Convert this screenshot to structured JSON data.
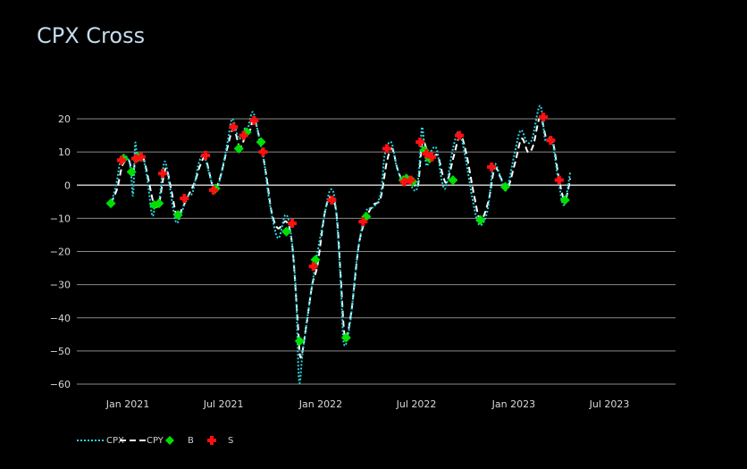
{
  "chart_data": {
    "type": "line",
    "title": "CPX Cross",
    "xlabel": "",
    "ylabel": "",
    "ylim": [
      -61,
      24
    ],
    "xlim": [
      "2020-10-01",
      "2023-11-15"
    ],
    "y_ticks": [
      20,
      10,
      0,
      -10,
      -20,
      -30,
      -40,
      -50,
      -60
    ],
    "x_ticks": [
      {
        "date": "2021-01-01",
        "label": "Jan 2021"
      },
      {
        "date": "2021-07-01",
        "label": "Jul 2021"
      },
      {
        "date": "2022-01-01",
        "label": "Jan 2022"
      },
      {
        "date": "2022-07-01",
        "label": "Jul 2022"
      },
      {
        "date": "2023-01-01",
        "label": "Jan 2023"
      },
      {
        "date": "2023-07-01",
        "label": "Jul 2023"
      }
    ],
    "grid": true,
    "legend_position": "bottom-left",
    "colors": {
      "background": "#000000",
      "grid": "#8a8a8a",
      "zero_line": "#c8c8c8",
      "cpx": "#29d6e0",
      "cpy": "#ffffff",
      "buy": "#00e000",
      "sell": "#ff1010",
      "tick_text": "#d8d8d8",
      "title": "#c5dcec"
    },
    "series": [
      {
        "name": "CPX",
        "style": "dotted",
        "points": [
          [
            "2020-11-30",
            -5.5
          ],
          [
            "2020-12-10",
            0
          ],
          [
            "2020-12-20",
            8.5
          ],
          [
            "2021-01-01",
            8
          ],
          [
            "2021-01-07",
            4
          ],
          [
            "2021-01-11",
            -3
          ],
          [
            "2021-01-15",
            12.5
          ],
          [
            "2021-01-19",
            8
          ],
          [
            "2021-01-27",
            9.5
          ],
          [
            "2021-02-06",
            3
          ],
          [
            "2021-02-16",
            -9
          ],
          [
            "2021-02-22",
            -6
          ],
          [
            "2021-03-01",
            -5
          ],
          [
            "2021-03-08",
            4
          ],
          [
            "2021-03-13",
            7
          ],
          [
            "2021-03-21",
            0
          ],
          [
            "2021-04-02",
            -11
          ],
          [
            "2021-04-12",
            -8.5
          ],
          [
            "2021-04-24",
            -3.5
          ],
          [
            "2021-05-04",
            -2
          ],
          [
            "2021-05-16",
            7
          ],
          [
            "2021-05-26",
            8.5
          ],
          [
            "2021-06-08",
            1
          ],
          [
            "2021-06-14",
            -1.5
          ],
          [
            "2021-06-24",
            1.5
          ],
          [
            "2021-07-04",
            9
          ],
          [
            "2021-07-10",
            14
          ],
          [
            "2021-07-18",
            20
          ],
          [
            "2021-07-30",
            14
          ],
          [
            "2021-08-10",
            17
          ],
          [
            "2021-08-16",
            17
          ],
          [
            "2021-08-26",
            22
          ],
          [
            "2021-09-08",
            13
          ],
          [
            "2021-09-16",
            7
          ],
          [
            "2021-09-26",
            -5
          ],
          [
            "2021-10-12",
            -16
          ],
          [
            "2021-10-26",
            -9
          ],
          [
            "2021-11-05",
            -14
          ],
          [
            "2021-11-15",
            -32
          ],
          [
            "2021-11-21",
            -59
          ],
          [
            "2021-11-28",
            -50
          ],
          [
            "2021-12-12",
            -34
          ],
          [
            "2021-12-24",
            -22
          ],
          [
            "2022-01-07",
            -10
          ],
          [
            "2022-01-19",
            -1.5
          ],
          [
            "2022-01-29",
            -6
          ],
          [
            "2022-02-08",
            -30
          ],
          [
            "2022-02-14",
            -48
          ],
          [
            "2022-02-26",
            -41
          ],
          [
            "2022-03-12",
            -20
          ],
          [
            "2022-03-28",
            -8
          ],
          [
            "2022-04-08",
            -7
          ],
          [
            "2022-04-24",
            -3
          ],
          [
            "2022-05-02",
            9
          ],
          [
            "2022-05-14",
            13
          ],
          [
            "2022-05-24",
            6
          ],
          [
            "2022-06-04",
            1.5
          ],
          [
            "2022-06-14",
            3
          ],
          [
            "2022-06-22",
            -0.5
          ],
          [
            "2022-07-02",
            -1
          ],
          [
            "2022-07-08",
            9
          ],
          [
            "2022-07-12",
            17.5
          ],
          [
            "2022-07-20",
            6
          ],
          [
            "2022-07-28",
            10
          ],
          [
            "2022-08-08",
            11
          ],
          [
            "2022-08-18",
            1.5
          ],
          [
            "2022-08-26",
            -0.5
          ],
          [
            "2022-09-08",
            11
          ],
          [
            "2022-09-20",
            16
          ],
          [
            "2022-10-02",
            8
          ],
          [
            "2022-10-16",
            -5
          ],
          [
            "2022-10-28",
            -12
          ],
          [
            "2022-11-12",
            -8
          ],
          [
            "2022-11-24",
            6
          ],
          [
            "2022-12-06",
            3
          ],
          [
            "2022-12-18",
            -1.5
          ],
          [
            "2023-01-02",
            9
          ],
          [
            "2023-01-14",
            16.5
          ],
          [
            "2023-01-26",
            13
          ],
          [
            "2023-02-05",
            14
          ],
          [
            "2023-02-20",
            24
          ],
          [
            "2023-03-02",
            13.5
          ],
          [
            "2023-03-14",
            14
          ],
          [
            "2023-03-26",
            2
          ],
          [
            "2023-04-06",
            -6
          ],
          [
            "2023-04-18",
            4
          ]
        ]
      },
      {
        "name": "CPY",
        "style": "dashed",
        "points": [
          [
            "2020-11-30",
            -5.5
          ],
          [
            "2020-12-12",
            -1
          ],
          [
            "2020-12-22",
            6
          ],
          [
            "2021-01-03",
            7.5
          ],
          [
            "2021-01-10",
            3
          ],
          [
            "2021-01-15",
            7
          ],
          [
            "2021-01-22",
            8.5
          ],
          [
            "2021-01-31",
            8
          ],
          [
            "2021-02-10",
            1
          ],
          [
            "2021-02-20",
            -6
          ],
          [
            "2021-03-01",
            -5.5
          ],
          [
            "2021-03-08",
            1
          ],
          [
            "2021-03-15",
            5
          ],
          [
            "2021-03-25",
            -2
          ],
          [
            "2021-04-04",
            -9.5
          ],
          [
            "2021-04-14",
            -7
          ],
          [
            "2021-04-26",
            -3
          ],
          [
            "2021-05-08",
            1
          ],
          [
            "2021-05-18",
            6
          ],
          [
            "2021-05-28",
            8
          ],
          [
            "2021-06-10",
            0
          ],
          [
            "2021-06-16",
            -1
          ],
          [
            "2021-06-26",
            3
          ],
          [
            "2021-07-08",
            11
          ],
          [
            "2021-07-20",
            17
          ],
          [
            "2021-08-01",
            11.5
          ],
          [
            "2021-08-12",
            15
          ],
          [
            "2021-08-20",
            16.5
          ],
          [
            "2021-08-28",
            20
          ],
          [
            "2021-09-10",
            12
          ],
          [
            "2021-09-20",
            3
          ],
          [
            "2021-09-30",
            -8
          ],
          [
            "2021-10-12",
            -13
          ],
          [
            "2021-10-28",
            -11
          ],
          [
            "2021-11-08",
            -18
          ],
          [
            "2021-11-18",
            -40
          ],
          [
            "2021-11-24",
            -52
          ],
          [
            "2021-12-05",
            -42
          ],
          [
            "2021-12-16",
            -30
          ],
          [
            "2021-12-26",
            -24
          ],
          [
            "2022-01-09",
            -8
          ],
          [
            "2022-01-21",
            -3.5
          ],
          [
            "2022-01-31",
            -9
          ],
          [
            "2022-02-08",
            -28
          ],
          [
            "2022-02-16",
            -46
          ],
          [
            "2022-02-28",
            -38
          ],
          [
            "2022-03-14",
            -18
          ],
          [
            "2022-03-28",
            -10
          ],
          [
            "2022-04-10",
            -6
          ],
          [
            "2022-04-24",
            -4
          ],
          [
            "2022-05-06",
            7
          ],
          [
            "2022-05-16",
            11
          ],
          [
            "2022-05-26",
            5
          ],
          [
            "2022-06-06",
            1
          ],
          [
            "2022-06-16",
            2
          ],
          [
            "2022-06-24",
            1
          ],
          [
            "2022-07-04",
            0
          ],
          [
            "2022-07-12",
            13
          ],
          [
            "2022-07-22",
            10
          ],
          [
            "2022-07-30",
            8
          ],
          [
            "2022-08-10",
            9
          ],
          [
            "2022-08-20",
            3
          ],
          [
            "2022-08-28",
            1
          ],
          [
            "2022-09-10",
            9
          ],
          [
            "2022-09-22",
            15
          ],
          [
            "2022-10-04",
            9
          ],
          [
            "2022-10-18",
            -3
          ],
          [
            "2022-10-30",
            -10.5
          ],
          [
            "2022-11-14",
            -5
          ],
          [
            "2022-11-26",
            5
          ],
          [
            "2022-12-08",
            2
          ],
          [
            "2022-12-20",
            -1
          ],
          [
            "2023-01-04",
            7
          ],
          [
            "2023-01-16",
            14
          ],
          [
            "2023-01-28",
            10
          ],
          [
            "2023-02-07",
            12
          ],
          [
            "2023-02-20",
            20.5
          ],
          [
            "2023-03-04",
            14
          ],
          [
            "2023-03-16",
            13
          ],
          [
            "2023-03-28",
            1.5
          ],
          [
            "2023-04-08",
            -4.5
          ],
          [
            "2023-04-18",
            2
          ]
        ]
      }
    ],
    "buy_signals": [
      [
        "2020-11-30",
        -5.5
      ],
      [
        "2020-12-24",
        8
      ],
      [
        "2021-01-08",
        4
      ],
      [
        "2021-01-20",
        8.5
      ],
      [
        "2021-02-20",
        -6
      ],
      [
        "2021-03-01",
        -5.5
      ],
      [
        "2021-04-06",
        -9
      ],
      [
        "2021-06-16",
        -1
      ],
      [
        "2021-07-30",
        11
      ],
      [
        "2021-08-14",
        16
      ],
      [
        "2021-09-10",
        13
      ],
      [
        "2021-10-28",
        -14
      ],
      [
        "2021-11-22",
        -47
      ],
      [
        "2021-12-22",
        -22.5
      ],
      [
        "2022-02-18",
        -46
      ],
      [
        "2022-03-28",
        -9.5
      ],
      [
        "2022-06-06",
        1.5
      ],
      [
        "2022-06-12",
        2
      ],
      [
        "2022-06-24",
        1
      ],
      [
        "2022-07-16",
        10.5
      ],
      [
        "2022-07-26",
        8
      ],
      [
        "2022-09-08",
        1.5
      ],
      [
        "2022-10-30",
        -10.5
      ],
      [
        "2022-12-16",
        -0.5
      ],
      [
        "2023-04-08",
        -4.5
      ]
    ],
    "sell_signals": [
      [
        "2020-12-20",
        7.5
      ],
      [
        "2021-01-16",
        8
      ],
      [
        "2021-01-26",
        8.5
      ],
      [
        "2021-03-08",
        3.5
      ],
      [
        "2021-04-18",
        -4
      ],
      [
        "2021-05-28",
        9
      ],
      [
        "2021-06-12",
        -1.5
      ],
      [
        "2021-07-20",
        17.5
      ],
      [
        "2021-08-08",
        15
      ],
      [
        "2021-08-28",
        19.5
      ],
      [
        "2021-09-14",
        10
      ],
      [
        "2021-11-08",
        -11.5
      ],
      [
        "2021-12-18",
        -24.5
      ],
      [
        "2022-01-22",
        -4.5
      ],
      [
        "2022-03-22",
        -11
      ],
      [
        "2022-05-06",
        11
      ],
      [
        "2022-06-08",
        1
      ],
      [
        "2022-06-20",
        1.5
      ],
      [
        "2022-07-08",
        13
      ],
      [
        "2022-07-20",
        9.5
      ],
      [
        "2022-07-30",
        8.5
      ],
      [
        "2022-09-20",
        15
      ],
      [
        "2022-11-20",
        5.5
      ],
      [
        "2023-02-26",
        20.5
      ],
      [
        "2023-03-12",
        13.5
      ],
      [
        "2023-03-28",
        1.5
      ]
    ],
    "legend": [
      {
        "name": "CPX",
        "kind": "dotted-line"
      },
      {
        "name": "CPY",
        "kind": "dashed-line"
      },
      {
        "name": "B",
        "kind": "diamond-marker"
      },
      {
        "name": "S",
        "kind": "cross-marker"
      }
    ]
  }
}
